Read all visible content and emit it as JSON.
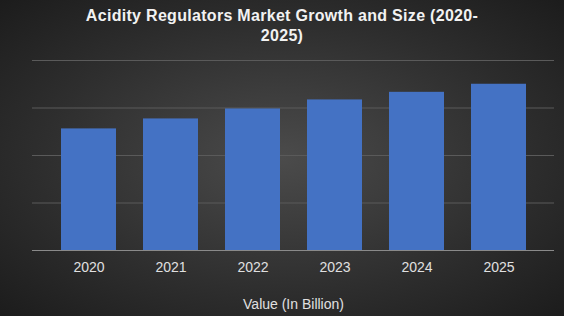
{
  "chart_data": {
    "type": "bar",
    "title": "Acidity Regulators Market Growth and Size (2020-2025)",
    "xlabel": "Value (In Billion)",
    "categories": [
      "2020",
      "2021",
      "2022",
      "2023",
      "2024",
      "2025"
    ],
    "values": [
      2.56,
      2.77,
      2.98,
      3.17,
      3.33,
      3.5
    ],
    "color": "#4472c4",
    "ylim": [
      0,
      4
    ],
    "yticks": [
      0,
      1,
      2,
      3,
      4
    ],
    "grid": true,
    "tick_labels": "x"
  }
}
